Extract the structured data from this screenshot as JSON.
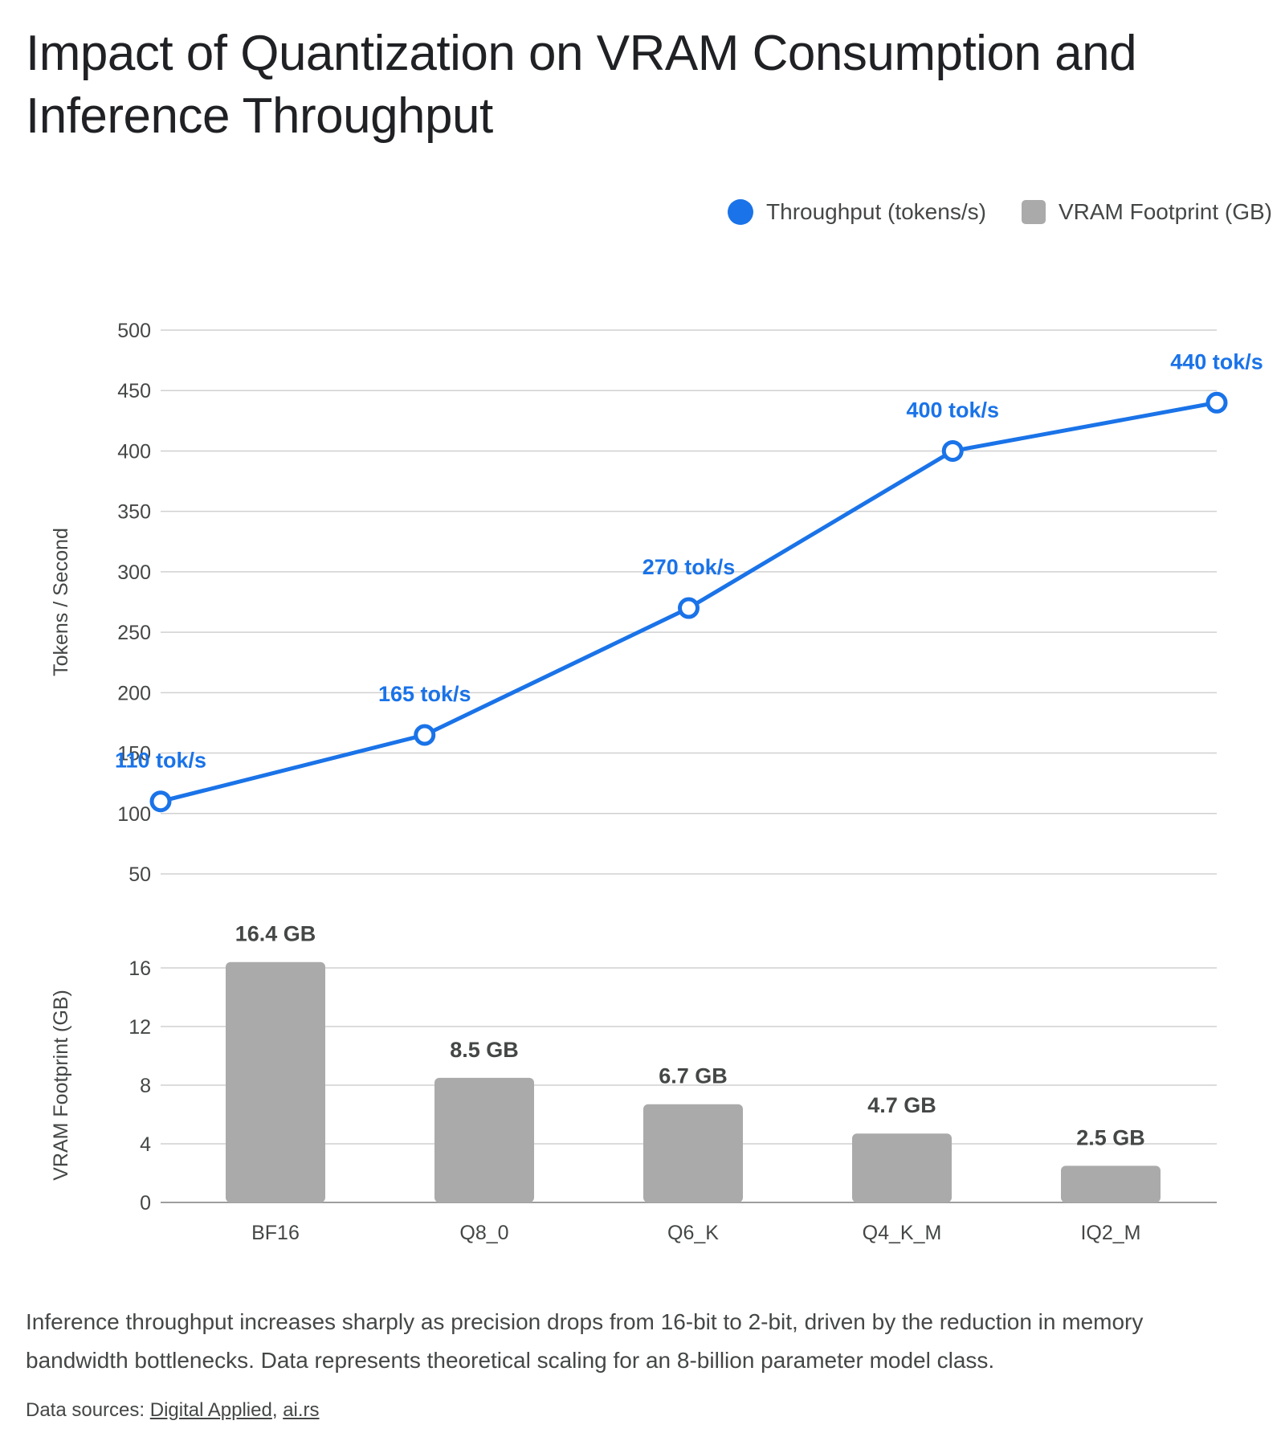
{
  "title": "Impact of Quantization on VRAM Consumption and Inference Throughput",
  "legend": [
    {
      "label": "Throughput (tokens/s)",
      "color": "#1a73e8",
      "shape": "circle"
    },
    {
      "label": "VRAM Footprint (GB)",
      "color": "#aaaaaa",
      "shape": "square"
    }
  ],
  "caption": "Inference throughput increases sharply as precision drops from 16-bit to 2-bit, driven by the reduction in memory bandwidth bottlenecks. Data represents theoretical scaling for an 8-billion parameter model class.",
  "sources": {
    "prefix": "Data sources: ",
    "links": [
      "Digital Applied",
      "ai.rs"
    ],
    "separator": ", "
  },
  "chart_data": [
    {
      "type": "line",
      "categories": [
        "BF16",
        "Q8_0",
        "Q6_K",
        "Q4_K_M",
        "IQ2_M"
      ],
      "series": [
        {
          "name": "Throughput (tokens/s)",
          "values": [
            110,
            165,
            270,
            400,
            440
          ],
          "color": "#1a73e8"
        }
      ],
      "data_labels": [
        "110 tok/s",
        "165 tok/s",
        "270 tok/s",
        "400 tok/s",
        "440 tok/s"
      ],
      "ylabel": "Tokens / Second",
      "ylim": [
        50,
        500
      ],
      "yticks": [
        50,
        100,
        150,
        200,
        250,
        300,
        350,
        400,
        450,
        500
      ],
      "grid": true
    },
    {
      "type": "bar",
      "categories": [
        "BF16",
        "Q8_0",
        "Q6_K",
        "Q4_K_M",
        "IQ2_M"
      ],
      "series": [
        {
          "name": "VRAM Footprint (GB)",
          "values": [
            16.4,
            8.5,
            6.7,
            4.7,
            2.5
          ],
          "color": "#aaaaaa"
        }
      ],
      "data_labels": [
        "16.4 GB",
        "8.5 GB",
        "6.7 GB",
        "4.7 GB",
        "2.5 GB"
      ],
      "ylabel": "VRAM Footprint (GB)",
      "ylim": [
        0,
        16
      ],
      "yticks": [
        0,
        4,
        8,
        12,
        16
      ],
      "grid": true
    }
  ]
}
